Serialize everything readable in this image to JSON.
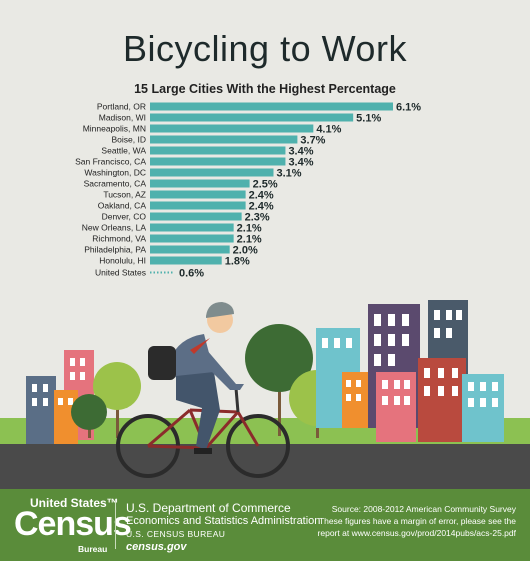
{
  "title": "Bicycling to Work",
  "chart_data": {
    "type": "bar",
    "orientation": "horizontal",
    "title": "15 Large Cities With the Highest Percentage",
    "categories": [
      "Portland, OR",
      "Madison, WI",
      "Minneapolis, MN",
      "Boise, ID",
      "Seattle, WA",
      "San Francisco, CA",
      "Washington, DC",
      "Sacramento, CA",
      "Tucson, AZ",
      "Oakland, CA",
      "Denver, CO",
      "New Orleans, LA",
      "Richmond, VA",
      "Philadelphia, PA",
      "Honolulu, HI"
    ],
    "values": [
      6.1,
      5.1,
      4.1,
      3.7,
      3.4,
      3.4,
      3.1,
      2.5,
      2.4,
      2.4,
      2.3,
      2.1,
      2.1,
      2.0,
      1.8
    ],
    "value_labels": [
      "6.1%",
      "5.1%",
      "4.1%",
      "3.7%",
      "3.4%",
      "3.4%",
      "3.1%",
      "2.5%",
      "2.4%",
      "2.4%",
      "2.3%",
      "2.1%",
      "2.1%",
      "2.0%",
      "1.8%"
    ],
    "reference": {
      "label": "United States",
      "value": 0.6,
      "value_label": "0.6%",
      "style": "dotted"
    },
    "bar_color": "#4fb1ad",
    "xlim": [
      0,
      6.1
    ]
  },
  "footer": {
    "logo_top": "United States™",
    "logo_main": "Census",
    "logo_sub": "Bureau",
    "dept_line1": "U.S. Department of Commerce",
    "dept_line2": "Economics and Statistics Administration",
    "dept_line3": "U.S. CENSUS BUREAU",
    "dept_line4": "census.gov",
    "source_line1": "Source: 2008-2012 American Community Survey",
    "source_line2": "These figures have a margin of error, please see the",
    "source_line3": "report at www.census.gov/prod/2014pubs/acs-25.pdf"
  },
  "colors": {
    "footer_bg": "#5a8c3a",
    "bar": "#4fb1ad",
    "road": "#4a4a4a",
    "grass": "#8cc152"
  }
}
